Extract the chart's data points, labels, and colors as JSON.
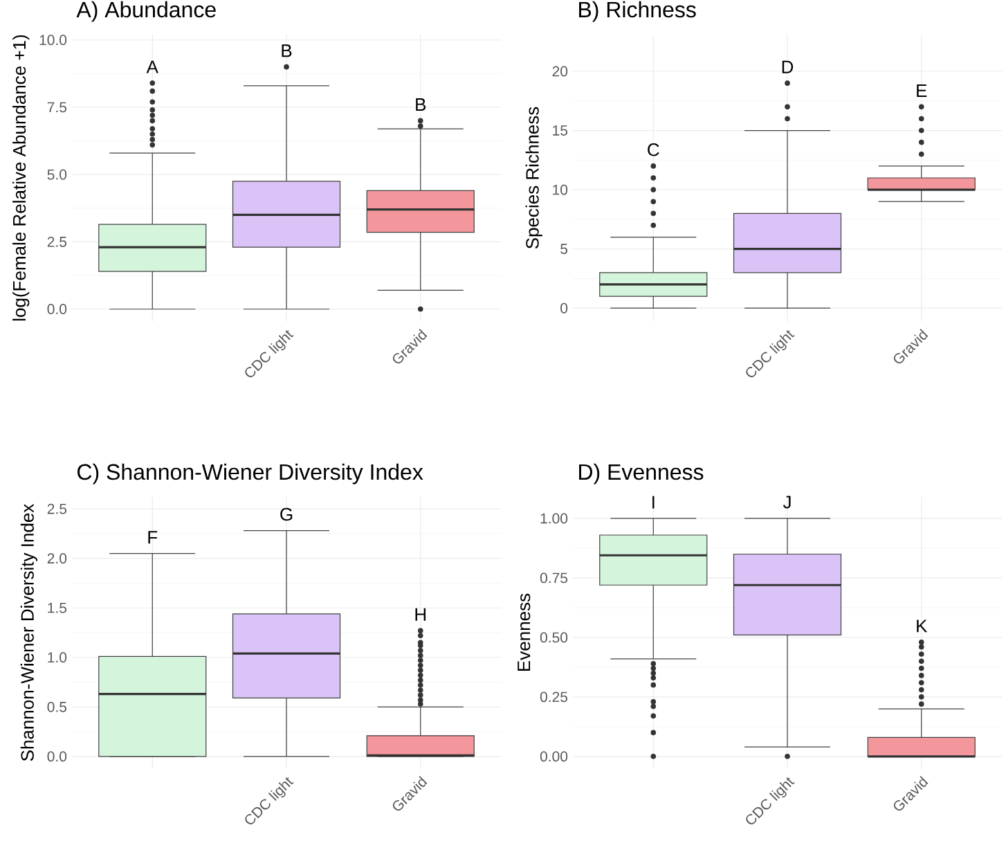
{
  "chart_data": [
    {
      "type": "box",
      "title": "A) Abundance",
      "ylabel": "log(Female Relative Abundance +1)",
      "categories": [
        null,
        "CDC light",
        "Gravid"
      ],
      "colors": [
        "#d4f4dc",
        "#dac4f7",
        "#f4979c"
      ],
      "boxes": [
        {
          "low": 0,
          "q1": 1.4,
          "median": 2.3,
          "q3": 3.15,
          "high": 5.8,
          "outliers": [
            6.1,
            6.3,
            6.5,
            6.7,
            7.0,
            7.2,
            7.4,
            7.7,
            8.1,
            8.4
          ]
        },
        {
          "low": 0,
          "q1": 2.3,
          "median": 3.5,
          "q3": 4.75,
          "high": 8.3,
          "outliers": [
            9.0
          ]
        },
        {
          "low": 0.7,
          "q1": 2.85,
          "median": 3.7,
          "q3": 4.4,
          "high": 6.7,
          "outliers": [
            0.0,
            6.8,
            7.0
          ]
        }
      ],
      "annotations": [
        "A",
        "B",
        "B"
      ],
      "ylim": [
        -0.45,
        10.2
      ],
      "yticks": [
        {
          "value": 0,
          "label": "0.0"
        },
        {
          "value": 2.5,
          "label": "2.5"
        },
        {
          "value": 5,
          "label": "5.0"
        },
        {
          "value": 7.5,
          "label": "7.5"
        },
        {
          "value": 10,
          "label": "10.0"
        }
      ],
      "grid": true
    },
    {
      "type": "box",
      "title": "B) Richness",
      "ylabel": "Species Richness",
      "categories": [
        null,
        "CDC light",
        "Gravid"
      ],
      "colors": [
        "#d4f4dc",
        "#dac4f7",
        "#f4979c"
      ],
      "boxes": [
        {
          "low": 0,
          "q1": 1,
          "median": 2,
          "q3": 3,
          "high": 6,
          "outliers": [
            7,
            8,
            9,
            10,
            11,
            12
          ]
        },
        {
          "low": 0,
          "q1": 3,
          "median": 5,
          "q3": 8,
          "high": 15,
          "outliers": [
            16,
            17,
            19
          ]
        },
        {
          "low": 9,
          "q1": 10,
          "median": 10,
          "q3": 11,
          "high": 12,
          "outliers": [
            13,
            14,
            15,
            16,
            17
          ]
        }
      ],
      "annotations": [
        "C",
        "D",
        "E"
      ],
      "ylim": [
        -1.1,
        23.1
      ],
      "yticks": [
        0,
        5,
        10,
        15,
        20
      ],
      "grid": true
    },
    {
      "type": "box",
      "title": "C) Shannon-Wiener Diversity Index",
      "ylabel": "Shannon-Wiener Diversity Index",
      "categories": [
        null,
        "CDC light",
        "Gravid"
      ],
      "colors": [
        "#d4f4dc",
        "#dac4f7",
        "#f4979c"
      ],
      "boxes": [
        {
          "low": 0,
          "q1": 0,
          "median": 0.63,
          "q3": 1.01,
          "high": 2.05
        },
        {
          "low": 0,
          "q1": 0.59,
          "median": 1.04,
          "q3": 1.44,
          "high": 2.28
        },
        {
          "low": 0,
          "q1": 0,
          "median": 0.01,
          "q3": 0.21,
          "high": 0.5,
          "outliers": [
            0.53,
            0.57,
            0.62,
            0.67,
            0.72,
            0.77,
            0.82,
            0.87,
            0.92,
            0.97,
            1.02,
            1.07,
            1.12,
            1.15,
            1.22,
            1.27
          ]
        }
      ],
      "annotations": [
        "F",
        "G",
        "H"
      ],
      "ylim": [
        -0.12,
        2.62
      ],
      "yticks": [
        {
          "value": 0,
          "label": "0.0"
        },
        {
          "value": 0.5,
          "label": "0.5"
        },
        {
          "value": 1,
          "label": "1.0"
        },
        {
          "value": 1.5,
          "label": "1.5"
        },
        {
          "value": 2,
          "label": "2.0"
        },
        {
          "value": 2.5,
          "label": "2.5"
        }
      ],
      "grid": true
    },
    {
      "type": "box",
      "title": "D) Evenness",
      "ylabel": "Evenness",
      "categories": [
        null,
        "CDC light",
        "Gravid"
      ],
      "colors": [
        "#d4f4dc",
        "#dac4f7",
        "#f4979c"
      ],
      "boxes": [
        {
          "low": 0.41,
          "q1": 0.72,
          "median": 0.845,
          "q3": 0.93,
          "high": 1.0,
          "outliers": [
            0.0,
            0.1,
            0.17,
            0.21,
            0.23,
            0.3,
            0.33,
            0.35,
            0.37,
            0.39
          ]
        },
        {
          "low": 0.04,
          "q1": 0.51,
          "median": 0.72,
          "q3": 0.85,
          "high": 1.0,
          "outliers": [
            0.0
          ]
        },
        {
          "low": 0,
          "q1": 0,
          "median": 0.0,
          "q3": 0.08,
          "high": 0.2,
          "outliers": [
            0.22,
            0.25,
            0.28,
            0.31,
            0.34,
            0.37,
            0.4,
            0.43,
            0.46,
            0.48
          ]
        }
      ],
      "annotations": [
        "I",
        "J",
        "K"
      ],
      "ylim": [
        -0.05,
        1.09
      ],
      "yticks": [
        {
          "value": 0,
          "label": "0.00"
        },
        {
          "value": 0.25,
          "label": "0.25"
        },
        {
          "value": 0.5,
          "label": "0.50"
        },
        {
          "value": 0.75,
          "label": "0.75"
        },
        {
          "value": 1,
          "label": "1.00"
        }
      ],
      "grid": true
    }
  ]
}
